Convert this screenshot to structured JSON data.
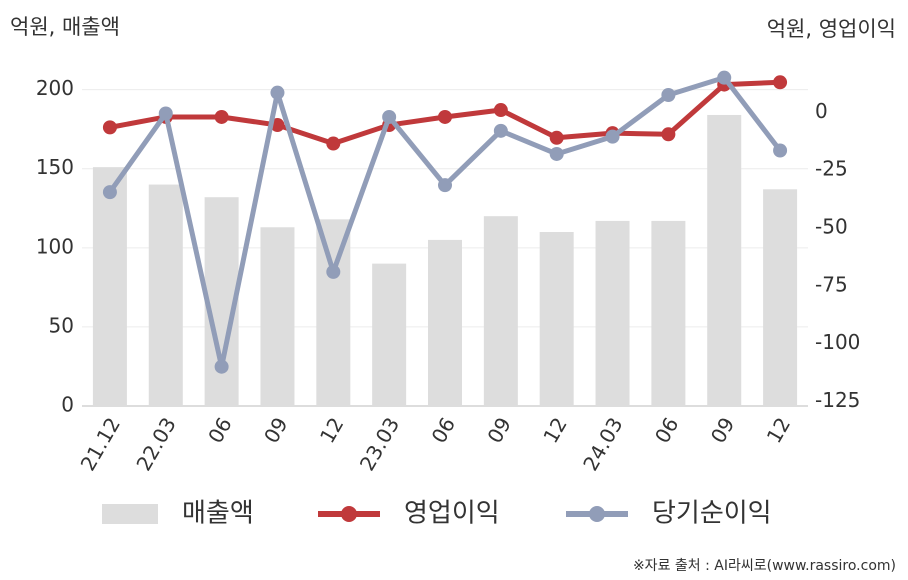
{
  "chart_data": {
    "type": "combo",
    "y_label": "억원, 매출액",
    "y2_label": "억원, 영업이익",
    "source": "※자료 출처 : AI라씨로(www.rassiro.com)",
    "categories": [
      "21.12",
      "22.03",
      "06",
      "09",
      "12",
      "23.03",
      "06",
      "09",
      "12",
      "24.03",
      "06",
      "09",
      "12"
    ],
    "series": [
      {
        "name": "매출액",
        "type": "bar",
        "color": "#dddddd",
        "values": [
          151,
          140,
          132,
          113,
          118,
          90,
          105,
          120,
          110,
          117,
          117,
          184,
          137
        ]
      },
      {
        "name": "영업이익",
        "type": "line",
        "axis": "y2",
        "color": "#c0393b",
        "values": [
          -6.5,
          -2,
          -2,
          -5.5,
          -13.5,
          -5.5,
          -2,
          1,
          -11,
          -9,
          -9.5,
          12,
          13
        ]
      },
      {
        "name": "당기순이익",
        "type": "line",
        "axis": "y2",
        "color": "#919db8",
        "values": [
          -34.5,
          -0.5,
          -110,
          8.5,
          -69,
          -2,
          -31.5,
          -8,
          -18,
          -10.5,
          7.5,
          15,
          -16.5
        ]
      }
    ],
    "ylim": [
      0,
      220
    ],
    "yticks": [
      0,
      50,
      100,
      150,
      200
    ],
    "y2lim": [
      -127,
      23.5
    ],
    "y2ticks": [
      0,
      -25,
      -50,
      -75,
      -100,
      -125
    ],
    "grid": true,
    "legend": "bottom"
  }
}
